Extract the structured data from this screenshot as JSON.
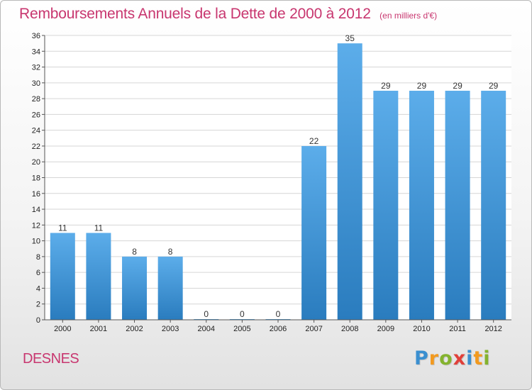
{
  "header": {
    "title": "Remboursements Annuels de la Dette de 2000 à 2012",
    "unit": "(en milliers d'€)"
  },
  "location": "DESNES",
  "brand": {
    "letters": [
      {
        "char": "P",
        "color": "#3a8fd0"
      },
      {
        "char": "r",
        "color": "#f29a1f"
      },
      {
        "char": "o",
        "color": "#84b32e"
      },
      {
        "char": "x",
        "color": "#e0403a"
      },
      {
        "char": "i",
        "color": "#3a8fd0"
      },
      {
        "char": "t",
        "color": "#f29a1f"
      },
      {
        "char": "i",
        "color": "#84b32e"
      }
    ]
  },
  "chart_data": {
    "type": "bar",
    "title": "Remboursements Annuels de la Dette de 2000 à 2012",
    "xlabel": "",
    "ylabel": "",
    "categories": [
      "2000",
      "2001",
      "2002",
      "2003",
      "2004",
      "2005",
      "2006",
      "2007",
      "2008",
      "2009",
      "2010",
      "2011",
      "2012"
    ],
    "values": [
      11,
      11,
      8,
      8,
      0,
      0,
      0,
      22,
      35,
      29,
      29,
      29,
      29
    ],
    "ylim": [
      0,
      36
    ],
    "y_ticks": [
      0,
      2,
      4,
      6,
      8,
      10,
      12,
      14,
      16,
      18,
      20,
      22,
      24,
      26,
      28,
      30,
      32,
      34,
      36
    ],
    "grid": "horizontal",
    "legend": "none",
    "colors": {
      "bar_light": "#5cadea",
      "bar_dark": "#2a7cbe",
      "grid": "#d6d6d6"
    }
  }
}
